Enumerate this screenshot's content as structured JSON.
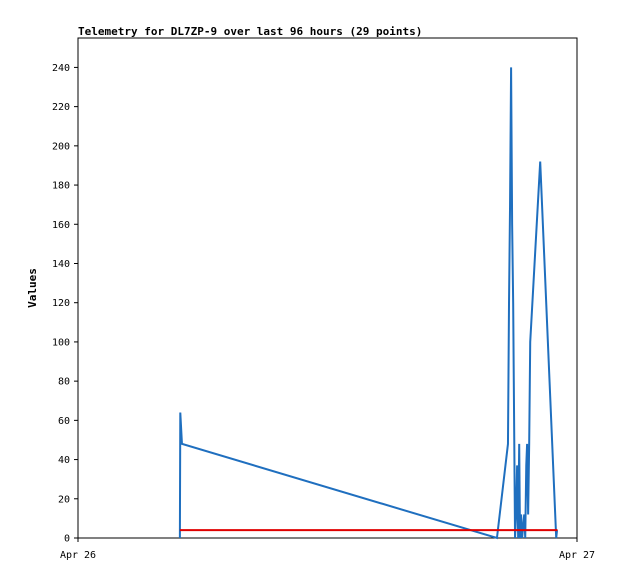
{
  "chart_data": {
    "type": "line",
    "title": "Telemetry for DL7ZP-9 over last 96 hours (29 points)",
    "ylabel": "Values",
    "xlim": [
      0,
      24
    ],
    "xticks": [
      {
        "value": 0,
        "label": "Apr 26"
      },
      {
        "value": 24,
        "label": "Apr 27"
      }
    ],
    "ylim": [
      0,
      255
    ],
    "yticks": [
      0,
      20,
      40,
      60,
      80,
      100,
      120,
      140,
      160,
      180,
      200,
      220,
      240
    ],
    "series": [
      {
        "color": "#1f6fbf",
        "x": [
          4.9,
          4.92,
          5.0,
          20.15,
          20.68,
          20.73,
          20.78,
          20.83,
          20.88,
          20.93,
          21.02,
          21.07,
          21.12,
          21.17,
          21.22,
          21.26,
          21.31,
          21.36,
          21.46,
          21.51,
          21.56,
          21.6,
          21.65,
          21.7,
          21.75,
          22.23,
          23.0,
          23.04,
          23.06
        ],
        "values": [
          0,
          64,
          48,
          0,
          48,
          120,
          170,
          240,
          160,
          120,
          0,
          12,
          37,
          0,
          48,
          0,
          12,
          0,
          12,
          0,
          37,
          48,
          12,
          48,
          100,
          192,
          0,
          4,
          4
        ]
      },
      {
        "color": "#e00000",
        "x": [
          4.9,
          23.06
        ],
        "values": [
          4,
          4
        ]
      }
    ]
  }
}
